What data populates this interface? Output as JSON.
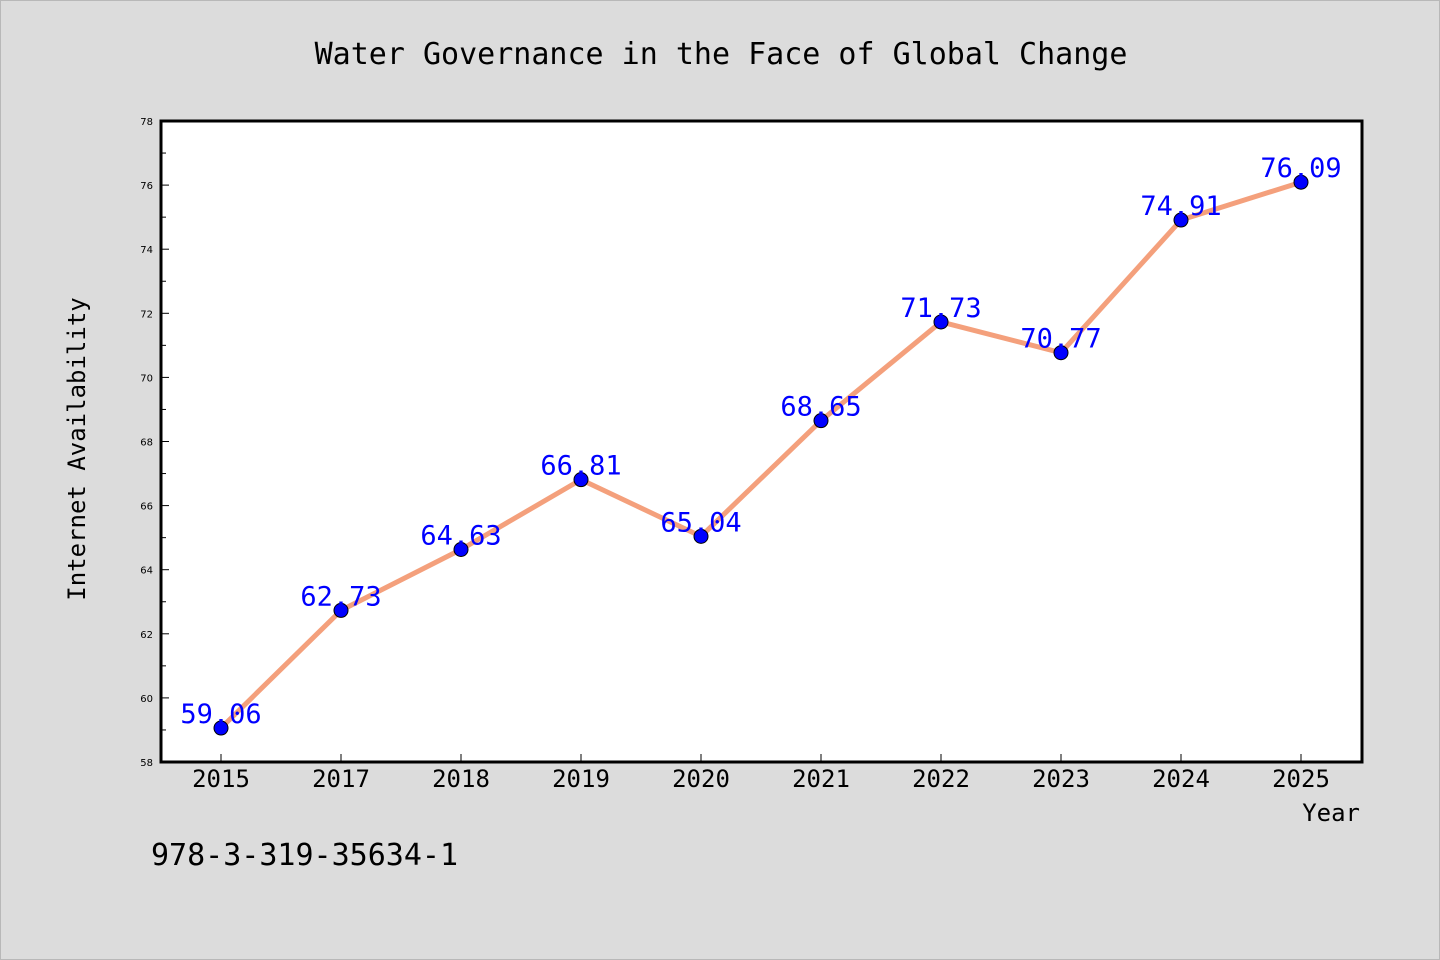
{
  "chart_data": {
    "type": "line",
    "title": "Water Governance in the Face of Global Change",
    "xlabel": "Year",
    "ylabel": "Internet Availability",
    "categories": [
      "2015",
      "2017",
      "2018",
      "2019",
      "2020",
      "2021",
      "2022",
      "2023",
      "2024",
      "2025"
    ],
    "series": [
      {
        "values": [
          59.06,
          62.73,
          64.63,
          66.81,
          65.04,
          68.65,
          71.73,
          70.77,
          74.91,
          76.09
        ],
        "line_color": "#f4a07c",
        "marker_color": "#0000ff"
      }
    ],
    "data_labels": [
      "59.06",
      "62.73",
      "64.63",
      "66.81",
      "65.04",
      "68.65",
      "71.73",
      "70.77",
      "74.91",
      "76.09"
    ],
    "ylim": [
      58,
      78
    ],
    "yticks": [
      58,
      60,
      62,
      64,
      66,
      68,
      70,
      72,
      74,
      76,
      78
    ],
    "grid": false,
    "legend": "none"
  },
  "annotation": {
    "text": "978-3-319-35634-1"
  },
  "colors": {
    "background": "#dcdcdc",
    "plot_background": "#ffffff",
    "line": "#f4a07c",
    "marker": "#0000ff",
    "data_label": "#0000ff"
  }
}
